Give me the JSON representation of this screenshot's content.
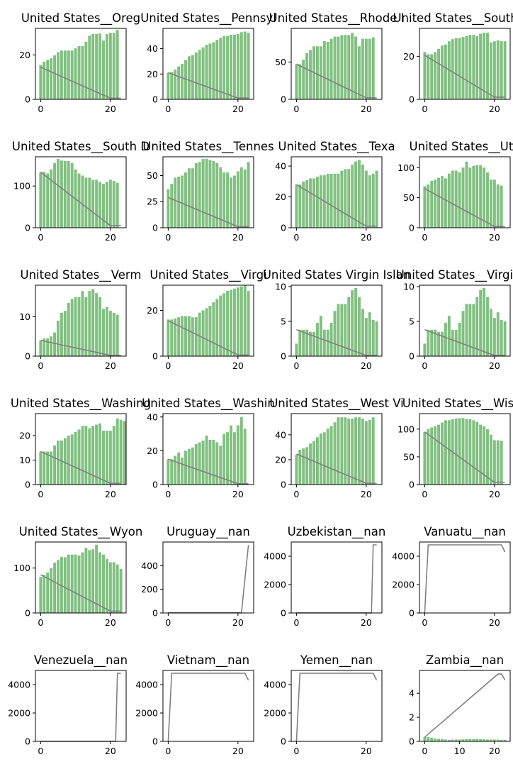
{
  "chart_data": [
    {
      "type": "bar",
      "title": "United States__Oreg",
      "ylim": [
        0,
        32
      ],
      "yticks": [
        0,
        20
      ],
      "xlim": [
        -1.5,
        24.5
      ],
      "xticks": [
        0,
        20
      ],
      "values": [
        15.5,
        17,
        17.8,
        18.5,
        19.8,
        21.3,
        22,
        22,
        22,
        22,
        23,
        24,
        24,
        26,
        28.7,
        29.5,
        29.5,
        29.7,
        26.5,
        29.4,
        30,
        30,
        31.3
      ],
      "line": {
        "x": [
          0,
          20,
          23
        ],
        "y": [
          14.5,
          0.5,
          0.5
        ]
      }
    },
    {
      "type": "bar",
      "title": "United States__Pennsyl",
      "ylim": [
        0,
        56
      ],
      "yticks": [
        0,
        20,
        40
      ],
      "xlim": [
        -1.5,
        24.5
      ],
      "xticks": [
        0,
        20
      ],
      "values": [
        21,
        21.5,
        23.5,
        26,
        28,
        31,
        34,
        35,
        37,
        39,
        41,
        43,
        44,
        45,
        47,
        48.5,
        50,
        50,
        51,
        51,
        51.5,
        53,
        53.5,
        52.5
      ],
      "line": {
        "x": [
          0,
          20,
          23
        ],
        "y": [
          21,
          1,
          1
        ]
      }
    },
    {
      "type": "bar",
      "title": "United States__Rhode I",
      "ylim": [
        0,
        95
      ],
      "yticks": [
        0,
        50
      ],
      "xlim": [
        -1.5,
        24.5
      ],
      "xticks": [
        0,
        20
      ],
      "values": [
        47,
        47,
        53,
        62,
        66,
        71,
        71,
        71,
        78,
        77,
        81,
        84,
        84,
        86,
        86,
        86,
        89,
        84,
        71,
        81,
        81,
        81,
        83
      ],
      "line": {
        "x": [
          0,
          20,
          23
        ],
        "y": [
          47,
          2,
          2
        ]
      }
    },
    {
      "type": "bar",
      "title": "United States__South Ca",
      "ylim": [
        0,
        33
      ],
      "yticks": [
        0,
        20
      ],
      "xlim": [
        -1.5,
        24.5
      ],
      "xticks": [
        0,
        20
      ],
      "values": [
        22,
        21,
        21,
        22,
        23.5,
        25,
        25.5,
        27,
        28,
        28.5,
        28.5,
        29,
        29.5,
        30,
        30,
        29.5,
        30.5,
        31,
        31,
        26.5,
        27,
        27.5,
        27,
        27
      ],
      "line": {
        "x": [
          0,
          20,
          23
        ],
        "y": [
          20.5,
          1,
          1
        ]
      }
    },
    {
      "type": "bar",
      "title": "United States__South D",
      "ylim": [
        0,
        170
      ],
      "yticks": [
        0,
        100
      ],
      "xlim": [
        -1.5,
        24.5
      ],
      "xticks": [
        0,
        20
      ],
      "values": [
        133,
        134,
        130,
        140,
        155,
        165,
        161,
        160,
        160,
        155,
        140,
        130,
        125,
        120,
        120,
        115,
        115,
        110,
        105,
        110,
        115,
        112,
        108
      ],
      "line": {
        "x": [
          0,
          20,
          23
        ],
        "y": [
          133,
          5,
          5
        ]
      }
    },
    {
      "type": "bar",
      "title": "United States__Tennes",
      "ylim": [
        0,
        68
      ],
      "yticks": [
        0,
        25,
        50
      ],
      "xlim": [
        -1.5,
        24.5
      ],
      "xticks": [
        0,
        20
      ],
      "values": [
        37,
        42,
        48,
        49,
        50,
        53,
        57,
        57,
        62,
        63,
        66,
        66,
        65,
        64,
        62,
        58,
        53,
        53,
        48,
        50,
        54,
        58,
        56,
        63
      ],
      "line": {
        "x": [
          0,
          20,
          23
        ],
        "y": [
          29,
          1,
          1
        ]
      }
    },
    {
      "type": "bar",
      "title": "United States__Texa",
      "ylim": [
        0,
        46
      ],
      "yticks": [
        0,
        20,
        40
      ],
      "xlim": [
        -1.5,
        24.5
      ],
      "xticks": [
        0,
        20
      ],
      "values": [
        28,
        28,
        30,
        31,
        32,
        32,
        33,
        34,
        34,
        35,
        35,
        35,
        35,
        37,
        38,
        38,
        41,
        43,
        44,
        41,
        37,
        34,
        35,
        37
      ],
      "line": {
        "x": [
          0,
          20,
          23
        ],
        "y": [
          28,
          1,
          1
        ]
      }
    },
    {
      "type": "bar",
      "title": "United States__Uta",
      "ylim": [
        0,
        118
      ],
      "yticks": [
        0,
        50,
        100
      ],
      "xlim": [
        -1.5,
        24.5
      ],
      "xticks": [
        0,
        20
      ],
      "values": [
        69,
        72,
        78,
        80,
        83,
        86,
        82,
        90,
        95,
        95,
        92,
        100,
        110,
        100,
        103,
        104,
        104,
        100,
        92,
        80,
        80,
        72,
        70
      ],
      "line": {
        "x": [
          0,
          20,
          23
        ],
        "y": [
          65,
          2,
          2
        ]
      }
    },
    {
      "type": "bar",
      "title": "United States__Verm",
      "ylim": [
        0,
        18
      ],
      "yticks": [
        0,
        10
      ],
      "xlim": [
        -1.5,
        24.5
      ],
      "xticks": [
        0,
        20
      ],
      "values": [
        4,
        4.5,
        4.5,
        5,
        6,
        9,
        11,
        11.5,
        13.5,
        14.5,
        15,
        15,
        16.5,
        15,
        16.5,
        17,
        16,
        15,
        12,
        12.5,
        11.5,
        11,
        10.5
      ],
      "line": {
        "x": [
          0,
          20,
          23
        ],
        "y": [
          4,
          0.2,
          0.2
        ]
      }
    },
    {
      "type": "bar",
      "title": "United States__Virgi",
      "ylim": [
        0,
        31
      ],
      "yticks": [
        0,
        20
      ],
      "xlim": [
        -1.5,
        24.5
      ],
      "xticks": [
        0,
        20
      ],
      "values": [
        16,
        16,
        16.5,
        17,
        17.5,
        17.5,
        17.5,
        17,
        17,
        19,
        20,
        21,
        22,
        23.5,
        25,
        26.5,
        27.5,
        28.5,
        29,
        29.5,
        30,
        30.5,
        31,
        28.5
      ],
      "line": {
        "x": [
          0,
          20,
          23
        ],
        "y": [
          15.5,
          0.5,
          0.5
        ]
      }
    },
    {
      "type": "bar",
      "title": "United States Virgin Islan",
      "ylim": [
        0,
        10.2
      ],
      "yticks": [
        0,
        5,
        10
      ],
      "xlim": [
        -1.5,
        24.5
      ],
      "xticks": [
        0,
        20
      ],
      "values": [
        1.8,
        3.8,
        3.8,
        3.8,
        3.5,
        3.5,
        4.8,
        5.8,
        3.8,
        3.8,
        4.8,
        6.5,
        7.5,
        7.5,
        7.5,
        8.5,
        9.5,
        9.8,
        8.5,
        6.8,
        5.5,
        6.3,
        5.2,
        5
      ],
      "line": {
        "x": [
          0,
          20,
          23
        ],
        "y": [
          3.8,
          0.1,
          0.1
        ]
      }
    },
    {
      "type": "bar",
      "title": "United States__Virgin Is",
      "ylim": [
        0,
        10.2
      ],
      "yticks": [
        0,
        5,
        10
      ],
      "xlim": [
        -1.5,
        24.5
      ],
      "xticks": [
        0,
        20
      ],
      "values": [
        1.8,
        3.8,
        3.8,
        3.8,
        3.5,
        3.5,
        4.8,
        5.8,
        3.8,
        3.8,
        4.8,
        6.5,
        7.5,
        7.5,
        7.5,
        8.5,
        9.5,
        9.8,
        8.5,
        6.8,
        5.5,
        6.3,
        5.2,
        5
      ],
      "line": {
        "x": [
          0,
          20,
          23
        ],
        "y": [
          3.8,
          0.1,
          0.1
        ]
      }
    },
    {
      "type": "bar",
      "title": "United States__Washing",
      "ylim": [
        0,
        29
      ],
      "yticks": [
        0,
        10,
        20
      ],
      "xlim": [
        -1.5,
        24.5
      ],
      "xticks": [
        0,
        20
      ],
      "values": [
        13.5,
        13.5,
        13.5,
        13.5,
        16,
        18,
        18,
        19,
        20,
        20.5,
        21.5,
        22.5,
        24,
        24,
        23,
        24,
        24.5,
        25,
        22,
        22,
        22,
        24,
        27,
        26.5,
        26
      ],
      "line": {
        "x": [
          0,
          20,
          23
        ],
        "y": [
          13.5,
          0.5,
          0.5
        ]
      }
    },
    {
      "type": "bar",
      "title": "United States__Washin",
      "ylim": [
        0,
        42
      ],
      "yticks": [
        0,
        20,
        40
      ],
      "xlim": [
        -1.5,
        24.5
      ],
      "xticks": [
        0,
        20
      ],
      "values": [
        15,
        15,
        17,
        19,
        16,
        20,
        21,
        22,
        24,
        25,
        26,
        29,
        26.5,
        26.5,
        25,
        23,
        30,
        31,
        35,
        31,
        35,
        40,
        33
      ],
      "line": {
        "x": [
          0,
          20,
          23
        ],
        "y": [
          15,
          0.5,
          0.5
        ]
      }
    },
    {
      "type": "bar",
      "title": "United States__West Vi",
      "ylim": [
        0,
        57
      ],
      "yticks": [
        0,
        20,
        40
      ],
      "xlim": [
        -1.5,
        24.5
      ],
      "xticks": [
        0,
        20
      ],
      "values": [
        24,
        28,
        29,
        30,
        33,
        35,
        38,
        41,
        42,
        45,
        47,
        50,
        54,
        54,
        54,
        53,
        53,
        54,
        54,
        53,
        51,
        52,
        54
      ],
      "line": {
        "x": [
          0,
          20,
          23
        ],
        "y": [
          24.5,
          1,
          1
        ]
      }
    },
    {
      "type": "bar",
      "title": "United States__Wisco",
      "ylim": [
        0,
        128
      ],
      "yticks": [
        0,
        50,
        100
      ],
      "xlim": [
        -1.5,
        24.5
      ],
      "xticks": [
        0,
        20
      ],
      "values": [
        95,
        100,
        103,
        105,
        108,
        112,
        116,
        116,
        118,
        119,
        120,
        120,
        118,
        118,
        116,
        113,
        108,
        105,
        100,
        90,
        80,
        80,
        79
      ],
      "line": {
        "x": [
          0,
          20,
          23
        ],
        "y": [
          95,
          4,
          4
        ]
      }
    },
    {
      "type": "bar",
      "title": "United States__Wyon",
      "ylim": [
        0,
        158
      ],
      "yticks": [
        0,
        100
      ],
      "xlim": [
        -1.5,
        24.5
      ],
      "xticks": [
        0,
        20
      ],
      "values": [
        80,
        85,
        90,
        100,
        112,
        118,
        125,
        124,
        130,
        130,
        130,
        128,
        135,
        145,
        140,
        142,
        152,
        135,
        130,
        120,
        113,
        113,
        108,
        98
      ],
      "line": {
        "x": [
          0,
          20,
          23
        ],
        "y": [
          85,
          4,
          4
        ]
      }
    },
    {
      "type": "line",
      "title": "Uruguay__nan",
      "ylim": [
        0,
        600
      ],
      "yticks": [
        0,
        200,
        400
      ],
      "xlim": [
        -1.5,
        24.5
      ],
      "xticks": [
        0,
        20
      ],
      "values": [],
      "line": {
        "x": [
          0,
          21,
          23
        ],
        "y": [
          1,
          1,
          575
        ]
      }
    },
    {
      "type": "line",
      "title": "Uzbekistan__nan",
      "ylim": [
        0,
        5000
      ],
      "yticks": [
        0,
        2000,
        4000
      ],
      "xlim": [
        -1.5,
        24.5
      ],
      "xticks": [
        0,
        20
      ],
      "values": [],
      "line": {
        "x": [
          0,
          21.5,
          22,
          23
        ],
        "y": [
          1,
          1,
          4800,
          4800
        ]
      }
    },
    {
      "type": "line",
      "title": "Vanuatu__nan",
      "ylim": [
        0,
        5000
      ],
      "yticks": [
        0,
        2000,
        4000
      ],
      "xlim": [
        -1.5,
        24.5
      ],
      "xticks": [
        0,
        20
      ],
      "values": [],
      "line": {
        "x": [
          0,
          1,
          22,
          23
        ],
        "y": [
          1,
          4800,
          4800,
          4300
        ]
      }
    },
    {
      "type": "line",
      "title": "Venezuela__nan",
      "ylim": [
        0,
        5000
      ],
      "yticks": [
        0,
        2000,
        4000
      ],
      "xlim": [
        -1.5,
        24.5
      ],
      "xticks": [
        0,
        20
      ],
      "values": [],
      "line": {
        "x": [
          0,
          21.5,
          22,
          23
        ],
        "y": [
          1,
          1,
          4800,
          4800
        ]
      }
    },
    {
      "type": "line",
      "title": "Vietnam__nan",
      "ylim": [
        0,
        5000
      ],
      "yticks": [
        0,
        2000,
        4000
      ],
      "xlim": [
        -1.5,
        24.5
      ],
      "xticks": [
        0,
        20
      ],
      "values": [],
      "line": {
        "x": [
          0,
          1,
          22,
          23
        ],
        "y": [
          1,
          4800,
          4800,
          4300
        ]
      }
    },
    {
      "type": "line",
      "title": "Yemen__nan",
      "ylim": [
        0,
        5000
      ],
      "yticks": [
        0,
        2000,
        4000
      ],
      "xlim": [
        -1.5,
        24.5
      ],
      "xticks": [
        0,
        20
      ],
      "values": [],
      "line": {
        "x": [
          0,
          1,
          22,
          23
        ],
        "y": [
          1,
          4800,
          4800,
          4300
        ]
      }
    },
    {
      "type": "bar",
      "title": "Zambia__nan",
      "ylim": [
        0,
        5.9
      ],
      "yticks": [
        0,
        2,
        4
      ],
      "xlim": [
        -1.5,
        24.5
      ],
      "xticks": [
        0,
        10,
        20
      ],
      "values": [
        0.35,
        0.35,
        0.3,
        0.25,
        0.22,
        0.2,
        0.15,
        0.12,
        0.15,
        0.15,
        0.15,
        0.17,
        0.2,
        0.2,
        0.2,
        0.2,
        0.18,
        0.18,
        0.15,
        0.15,
        0.15,
        0.15,
        0.12,
        0.12
      ],
      "line": {
        "x": [
          0,
          21,
          22,
          23
        ],
        "y": [
          0.35,
          5.6,
          5.6,
          5.1
        ]
      }
    }
  ],
  "colors": {
    "bar": "#80c080",
    "line": "#808080",
    "axis": "#000000"
  }
}
